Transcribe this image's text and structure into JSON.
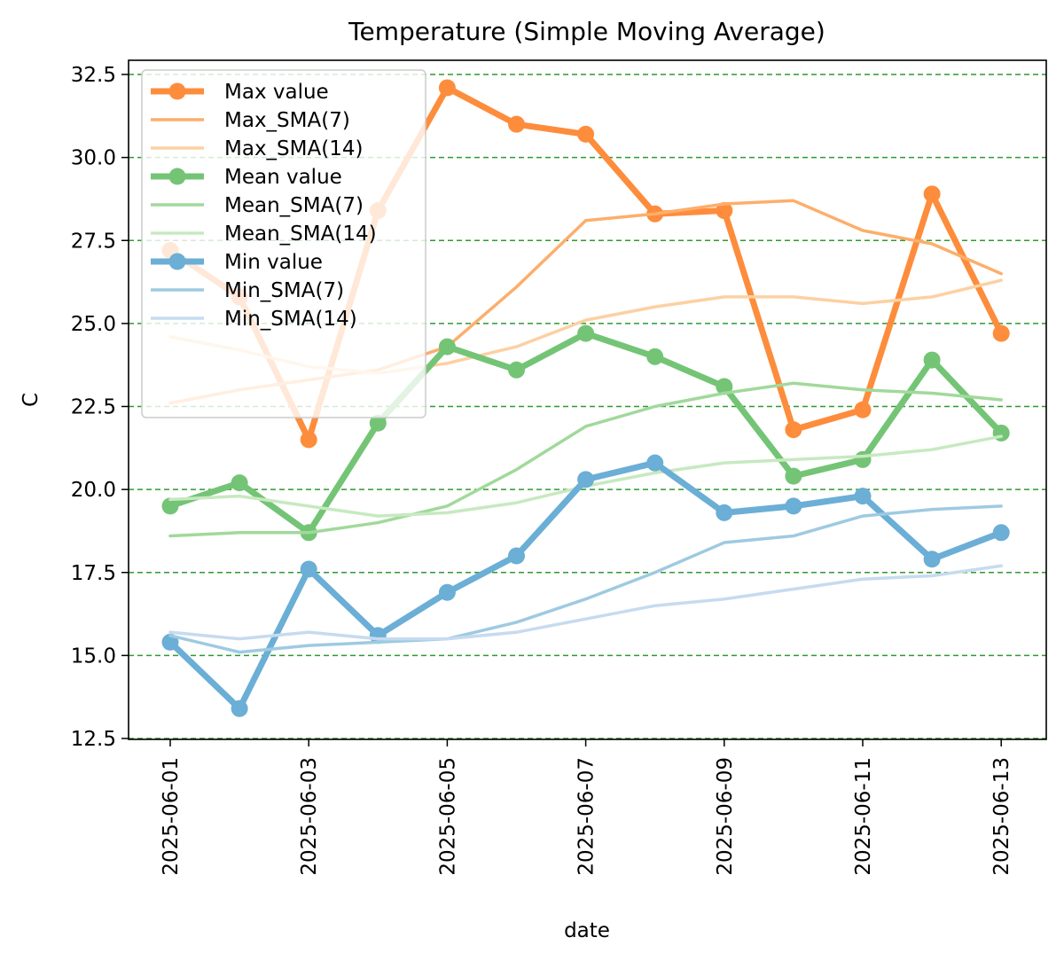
{
  "chart_data": {
    "type": "line",
    "title": "Temperature (Simple Moving Average)",
    "xlabel": "date",
    "ylabel": "C",
    "x": [
      "2025-06-01",
      "2025-06-02",
      "2025-06-03",
      "2025-06-04",
      "2025-06-05",
      "2025-06-06",
      "2025-06-07",
      "2025-06-08",
      "2025-06-09",
      "2025-06-10",
      "2025-06-11",
      "2025-06-12",
      "2025-06-13"
    ],
    "x_ticks": [
      "2025-06-01",
      "2025-06-03",
      "2025-06-05",
      "2025-06-07",
      "2025-06-09",
      "2025-06-11",
      "2025-06-13"
    ],
    "ylim": [
      12.5,
      32.5
    ],
    "y_ticks": [
      "12.5",
      "15.0",
      "17.5",
      "20.0",
      "22.5",
      "25.0",
      "27.5",
      "30.0",
      "32.5"
    ],
    "grid": "horizontal dashed green",
    "grid_color": "#2e9a2e",
    "legend_position": "upper left",
    "series": [
      {
        "name": "Max value",
        "color": "#fd8d3c",
        "style": "thick-marker",
        "values": [
          27.2,
          25.8,
          21.5,
          28.4,
          32.1,
          31.0,
          30.7,
          28.3,
          28.4,
          21.8,
          22.4,
          28.9,
          24.7
        ]
      },
      {
        "name": "Max_SMA(7)",
        "color": "#fdae6b",
        "style": "thin",
        "values": [
          22.6,
          23.0,
          23.3,
          23.6,
          24.3,
          26.1,
          28.1,
          28.3,
          28.6,
          28.7,
          27.8,
          27.4,
          26.5
        ]
      },
      {
        "name": "Max_SMA(14)",
        "color": "#fdd0a2",
        "style": "thin",
        "values": [
          24.6,
          24.2,
          23.7,
          23.5,
          23.8,
          24.3,
          25.1,
          25.5,
          25.8,
          25.8,
          25.6,
          25.8,
          26.3
        ]
      },
      {
        "name": "Mean value",
        "color": "#74c476",
        "style": "thick-marker",
        "values": [
          19.5,
          20.2,
          18.7,
          22.0,
          24.3,
          23.6,
          24.7,
          24.0,
          23.1,
          20.4,
          20.9,
          23.9,
          21.7
        ]
      },
      {
        "name": "Mean_SMA(7)",
        "color": "#a1d99b",
        "style": "thin",
        "values": [
          18.6,
          18.7,
          18.7,
          19.0,
          19.5,
          20.6,
          21.9,
          22.5,
          22.9,
          23.2,
          23.0,
          22.9,
          22.7
        ]
      },
      {
        "name": "Mean_SMA(14)",
        "color": "#c7e9c0",
        "style": "thin",
        "values": [
          19.7,
          19.8,
          19.5,
          19.2,
          19.3,
          19.6,
          20.1,
          20.5,
          20.8,
          20.9,
          21.0,
          21.2,
          21.6
        ]
      },
      {
        "name": "Min value",
        "color": "#6baed6",
        "style": "thick-marker",
        "values": [
          15.4,
          13.4,
          17.6,
          15.6,
          16.9,
          18.0,
          20.3,
          20.8,
          19.3,
          19.5,
          19.8,
          17.9,
          18.7
        ]
      },
      {
        "name": "Min_SMA(7)",
        "color": "#9ecae1",
        "style": "thin",
        "values": [
          15.6,
          15.1,
          15.3,
          15.4,
          15.5,
          16.0,
          16.7,
          17.5,
          18.4,
          18.6,
          19.2,
          19.4,
          19.5
        ]
      },
      {
        "name": "Min_SMA(14)",
        "color": "#c6dbef",
        "style": "thin",
        "values": [
          15.7,
          15.5,
          15.7,
          15.5,
          15.5,
          15.7,
          16.1,
          16.5,
          16.7,
          17.0,
          17.3,
          17.4,
          17.7
        ]
      }
    ]
  }
}
